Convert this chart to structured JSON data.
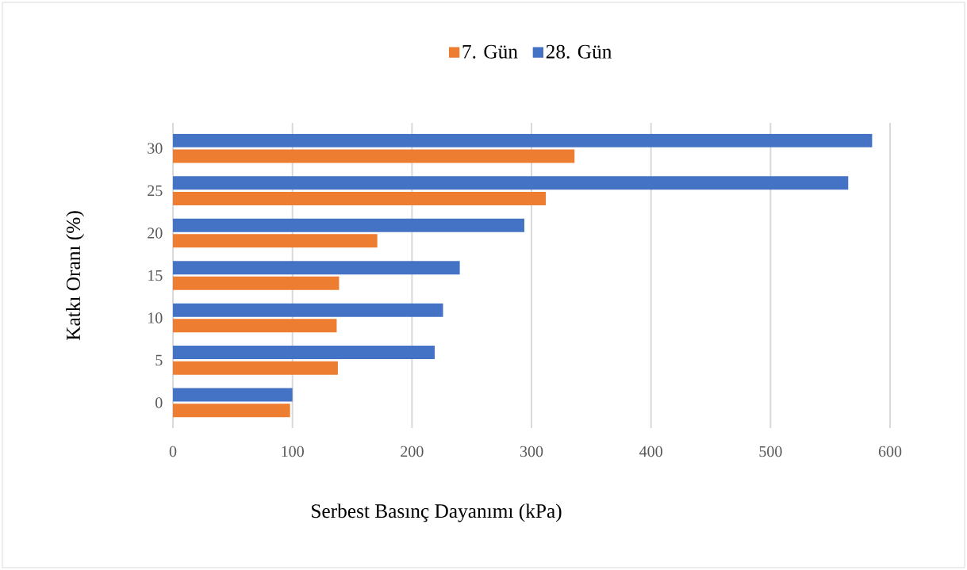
{
  "chart_data": {
    "type": "bar",
    "orientation": "horizontal",
    "xlabel": "Serbest Basınç Dayanımı (kPa)",
    "ylabel": "Katkı Oranı (%)",
    "categories": [
      "30",
      "25",
      "20",
      "15",
      "10",
      "5",
      "0"
    ],
    "series": [
      {
        "name": "7. Gün",
        "color": "#ed7d31",
        "values": [
          336,
          312,
          171,
          139,
          137,
          138,
          98
        ]
      },
      {
        "name": "28. Gün",
        "color": "#4472c4",
        "values": [
          585,
          565,
          294,
          240,
          226,
          219,
          100
        ]
      }
    ],
    "xlim": [
      0,
      600
    ],
    "xticks": [
      0,
      100,
      200,
      300,
      400,
      500,
      600
    ],
    "grid": "x",
    "legend": "top"
  }
}
